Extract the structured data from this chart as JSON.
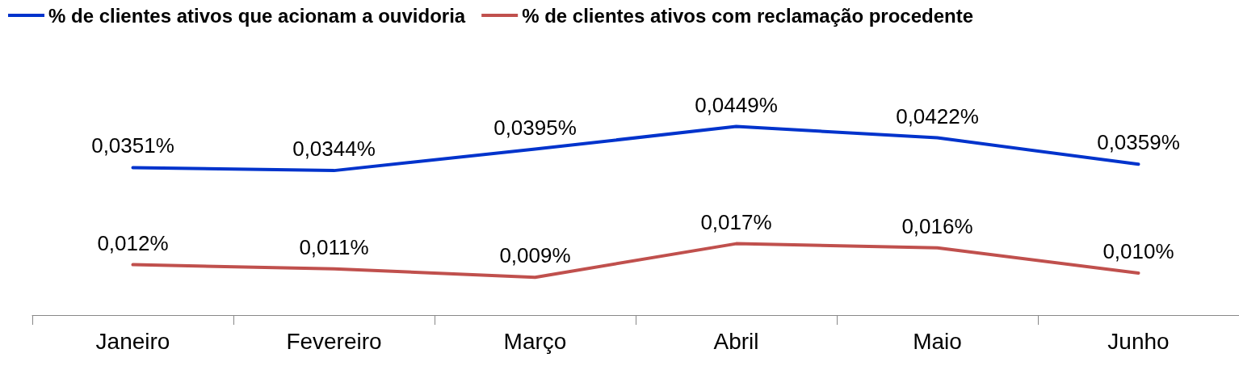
{
  "chart_data": {
    "type": "line",
    "categories": [
      "Janeiro",
      "Fevereiro",
      "Março",
      "Abril",
      "Maio",
      "Junho"
    ],
    "series": [
      {
        "name": "% de clientes ativos que acionam a ouvidoria",
        "color": "#0033cc",
        "values": [
          0.0351,
          0.0344,
          0.0395,
          0.0449,
          0.0422,
          0.0359
        ],
        "value_labels": [
          "0,0351%",
          "0,0344%",
          "0,0395%",
          "0,0449%",
          "0,0422%",
          "0,0359%"
        ]
      },
      {
        "name": "% de clientes ativos com reclamação procedente",
        "color": "#c0504d",
        "values": [
          0.012,
          0.011,
          0.009,
          0.017,
          0.016,
          0.01
        ],
        "value_labels": [
          "0,012%",
          "0,011%",
          "0,009%",
          "0,017%",
          "0,016%",
          "0,010%"
        ]
      }
    ],
    "tick_labels": "x",
    "grid": false,
    "legend": "top left",
    "marker": "none",
    "line_style": "solid"
  }
}
